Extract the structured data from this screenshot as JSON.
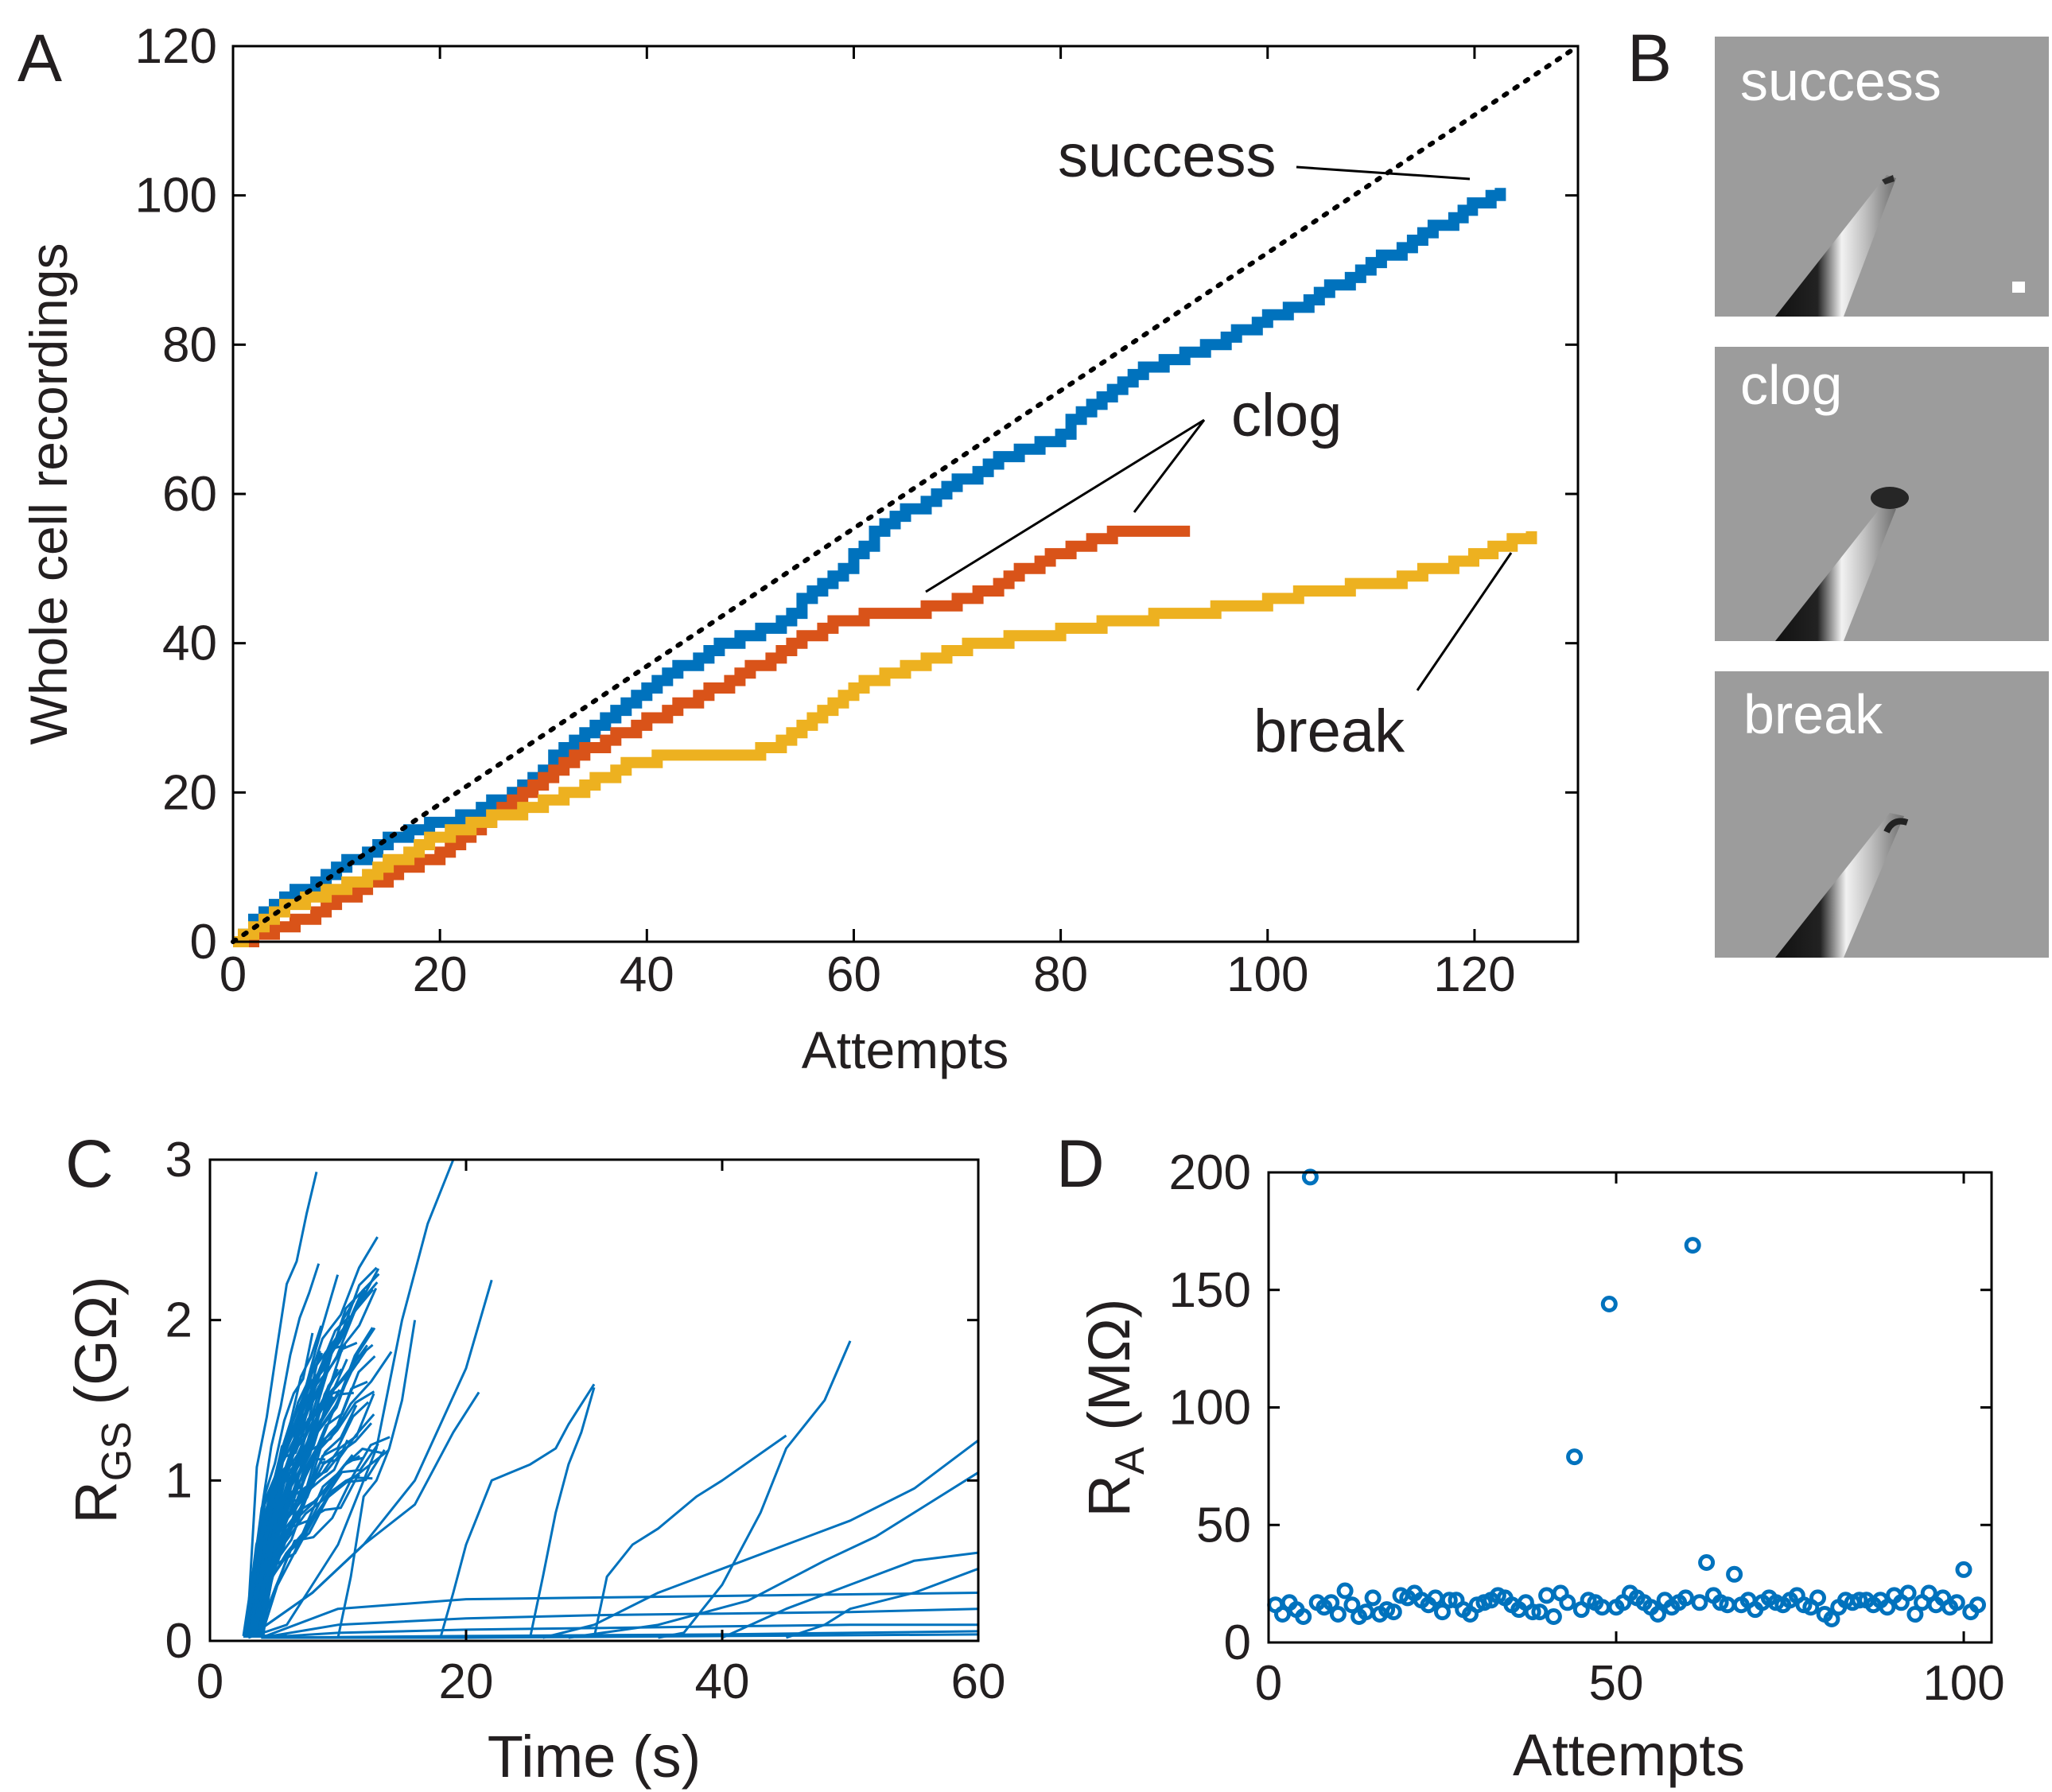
{
  "panels": {
    "A": "A",
    "B": "B",
    "C": "C",
    "D": "D"
  },
  "chart_data": [
    {
      "panel": "A",
      "type": "line",
      "step": true,
      "xlabel": "Attempts",
      "ylabel": "Whole cell recordings",
      "xlim": [
        0,
        130
      ],
      "ylim": [
        0,
        120
      ],
      "xticks": [
        0,
        20,
        40,
        60,
        80,
        100,
        120
      ],
      "yticks": [
        0,
        20,
        40,
        60,
        80,
        100,
        120
      ],
      "series": [
        {
          "name": "success",
          "color": "#0072BD",
          "x": [
            0,
            3,
            10,
            17,
            23,
            27,
            34,
            41,
            46,
            52,
            58,
            63,
            67,
            73,
            79,
            83,
            87,
            93,
            99,
            104,
            109,
            114,
            118,
            122.5
          ],
          "y": [
            0,
            4,
            10,
            15,
            17,
            20,
            28,
            35,
            39,
            42,
            49,
            56,
            59,
            64,
            67,
            72,
            76,
            79,
            83,
            86,
            90,
            94,
            97,
            101
          ]
        },
        {
          "name": "clog",
          "color": "#D95319",
          "x": [
            0,
            5,
            12,
            20,
            27,
            33,
            39,
            45,
            52,
            58,
            64,
            69,
            74,
            78,
            83,
            86,
            92.5
          ],
          "y": [
            0,
            2,
            7,
            12,
            19,
            25,
            29,
            33,
            38,
            43,
            44,
            45,
            48,
            51,
            54,
            55,
            55
          ]
        },
        {
          "name": "break",
          "color": "#EDB120",
          "x": [
            0,
            5,
            12,
            18,
            26,
            33,
            38,
            43,
            50,
            53,
            56,
            61,
            68,
            72,
            78,
            86,
            92,
            98,
            104,
            111,
            119,
            125.5
          ],
          "y": [
            0,
            5,
            8,
            13,
            17,
            20,
            24,
            25,
            25,
            27,
            30,
            35,
            38,
            40,
            41,
            43,
            44,
            45,
            47,
            48,
            51,
            55
          ]
        },
        {
          "name": "",
          "style": "dotted",
          "color": "#000000",
          "x": [
            0,
            130
          ],
          "y": [
            0,
            120
          ]
        }
      ],
      "annotations": [
        {
          "text": "success",
          "target": [
            119,
            102
          ]
        },
        {
          "text": "clog",
          "targets": [
            [
              67,
              46
            ],
            [
              87.5,
              57
            ]
          ]
        },
        {
          "text": "break",
          "target": [
            123,
            52
          ]
        }
      ]
    },
    {
      "panel": "C",
      "type": "line",
      "xlabel": "Time (s)",
      "ylabel": {
        "main": "R",
        "sub": "GS",
        "unit": " (GΩ)"
      },
      "xlim": [
        0,
        60
      ],
      "ylim": [
        0,
        3
      ],
      "xticks": [
        0,
        20,
        40,
        60
      ],
      "yticks": [
        0,
        1,
        2,
        3
      ],
      "color": "#0072BD",
      "description_of_traces": "Many seal-resistance traces: dense bundle rising from ~3 s to 1-3 GΩ by ~14 s, plus slower traces rising later.",
      "slow_traces": [
        {
          "x": [
            3,
            8,
            12,
            16,
            20,
            22
          ],
          "y": [
            0.02,
            0.3,
            0.6,
            1.0,
            1.7,
            2.25
          ]
        },
        {
          "x": [
            3,
            8,
            12,
            16,
            19,
            21
          ],
          "y": [
            0.02,
            0.3,
            0.6,
            0.85,
            1.3,
            1.55
          ]
        },
        {
          "x": [
            3,
            6,
            10,
            13,
            15,
            17,
            19
          ],
          "y": [
            0.02,
            0.1,
            0.6,
            1.2,
            2.0,
            2.6,
            3.0
          ]
        },
        {
          "x": [
            9,
            10,
            11,
            12,
            13,
            14,
            15,
            16
          ],
          "y": [
            0.02,
            0.02,
            0.4,
            0.9,
            1.0,
            1.2,
            1.5,
            2.0
          ]
        },
        {
          "x": [
            18,
            19,
            20,
            21,
            22,
            25,
            27,
            28,
            30
          ],
          "y": [
            0.02,
            0.3,
            0.6,
            0.8,
            1.0,
            1.1,
            1.2,
            1.35,
            1.6
          ]
        },
        {
          "x": [
            25,
            26,
            27,
            28,
            29,
            30
          ],
          "y": [
            0.02,
            0.4,
            0.8,
            1.1,
            1.3,
            1.58
          ]
        },
        {
          "x": [
            30,
            31,
            33,
            35,
            38,
            40,
            45
          ],
          "y": [
            0.02,
            0.4,
            0.6,
            0.7,
            0.9,
            1.0,
            1.28
          ]
        },
        {
          "x": [
            35,
            37,
            40,
            43,
            45,
            48,
            50
          ],
          "y": [
            0.02,
            0.05,
            0.35,
            0.8,
            1.2,
            1.5,
            1.87
          ]
        },
        {
          "x": [
            26,
            30,
            35,
            40,
            45,
            50,
            55,
            60
          ],
          "y": [
            0.02,
            0.1,
            0.3,
            0.45,
            0.6,
            0.75,
            0.95,
            1.25
          ]
        },
        {
          "x": [
            28,
            35,
            42,
            48,
            52,
            56,
            60
          ],
          "y": [
            0.02,
            0.1,
            0.25,
            0.5,
            0.65,
            0.85,
            1.05
          ]
        },
        {
          "x": [
            40,
            45,
            50,
            55,
            60
          ],
          "y": [
            0.02,
            0.2,
            0.35,
            0.5,
            0.55
          ]
        },
        {
          "x": [
            45,
            48,
            50,
            55,
            60
          ],
          "y": [
            0.02,
            0.1,
            0.2,
            0.3,
            0.45
          ]
        },
        {
          "x": [
            4,
            10,
            20,
            30,
            40,
            50,
            60
          ],
          "y": [
            0.02,
            0.2,
            0.26,
            0.27,
            0.28,
            0.29,
            0.3
          ]
        },
        {
          "x": [
            4,
            10,
            20,
            30,
            40,
            50,
            60
          ],
          "y": [
            0.02,
            0.1,
            0.14,
            0.16,
            0.17,
            0.18,
            0.2
          ]
        },
        {
          "x": [
            4,
            10,
            20,
            30,
            40,
            50,
            60
          ],
          "y": [
            0.02,
            0.05,
            0.07,
            0.08,
            0.09,
            0.1,
            0.1
          ]
        },
        {
          "x": [
            4,
            20,
            40,
            60
          ],
          "y": [
            0.02,
            0.03,
            0.04,
            0.06
          ]
        },
        {
          "x": [
            4,
            20,
            40,
            60
          ],
          "y": [
            0.02,
            0.02,
            0.03,
            0.04
          ]
        }
      ]
    },
    {
      "panel": "D",
      "type": "scatter",
      "xlabel": "Attempts",
      "ylabel": {
        "main": "R",
        "sub": "A",
        "unit": " (MΩ)"
      },
      "xlim": [
        0,
        104
      ],
      "ylim": [
        0,
        200
      ],
      "xticks": [
        0,
        50,
        100
      ],
      "yticks": [
        0,
        50,
        100,
        150,
        200
      ],
      "color": "#0072BD",
      "x": [
        1,
        2,
        3,
        4,
        5,
        6,
        7,
        8,
        9,
        10,
        11,
        12,
        13,
        14,
        15,
        16,
        17,
        18,
        19,
        20,
        21,
        22,
        23,
        24,
        25,
        26,
        27,
        28,
        29,
        30,
        31,
        32,
        33,
        34,
        35,
        36,
        37,
        38,
        39,
        40,
        41,
        42,
        43,
        44,
        45,
        46,
        47,
        48,
        49,
        50,
        51,
        52,
        53,
        54,
        55,
        56,
        57,
        58,
        59,
        60,
        61,
        62,
        63,
        64,
        65,
        66,
        67,
        68,
        69,
        70,
        71,
        72,
        73,
        74,
        75,
        76,
        77,
        78,
        79,
        80,
        81,
        82,
        83,
        84,
        85,
        86,
        87,
        88,
        89,
        90,
        91,
        92,
        93,
        94,
        95,
        96,
        97,
        98,
        99,
        100,
        101,
        102
      ],
      "y": [
        16,
        12,
        17,
        14,
        11,
        198,
        17,
        15,
        17,
        12,
        22,
        16,
        11,
        13,
        19,
        12,
        14,
        13,
        20,
        19,
        21,
        18,
        16,
        19,
        13,
        18,
        18,
        14,
        12,
        16,
        17,
        18,
        20,
        19,
        16,
        14,
        17,
        13,
        13,
        20,
        11,
        21,
        17,
        79,
        14,
        18,
        17,
        15,
        144,
        15,
        17,
        21,
        19,
        17,
        15,
        12,
        18,
        15,
        17,
        19,
        169,
        17,
        34,
        20,
        17,
        16,
        29,
        16,
        18,
        14,
        17,
        19,
        17,
        16,
        18,
        20,
        16,
        15,
        19,
        12,
        10,
        15,
        18,
        17,
        18,
        18,
        16,
        18,
        15,
        20,
        17,
        21,
        12,
        17,
        21,
        16,
        19,
        15,
        17,
        31,
        13,
        16
      ]
    }
  ],
  "images": [
    {
      "label": "success"
    },
    {
      "label": "clog"
    },
    {
      "label": "break"
    }
  ]
}
